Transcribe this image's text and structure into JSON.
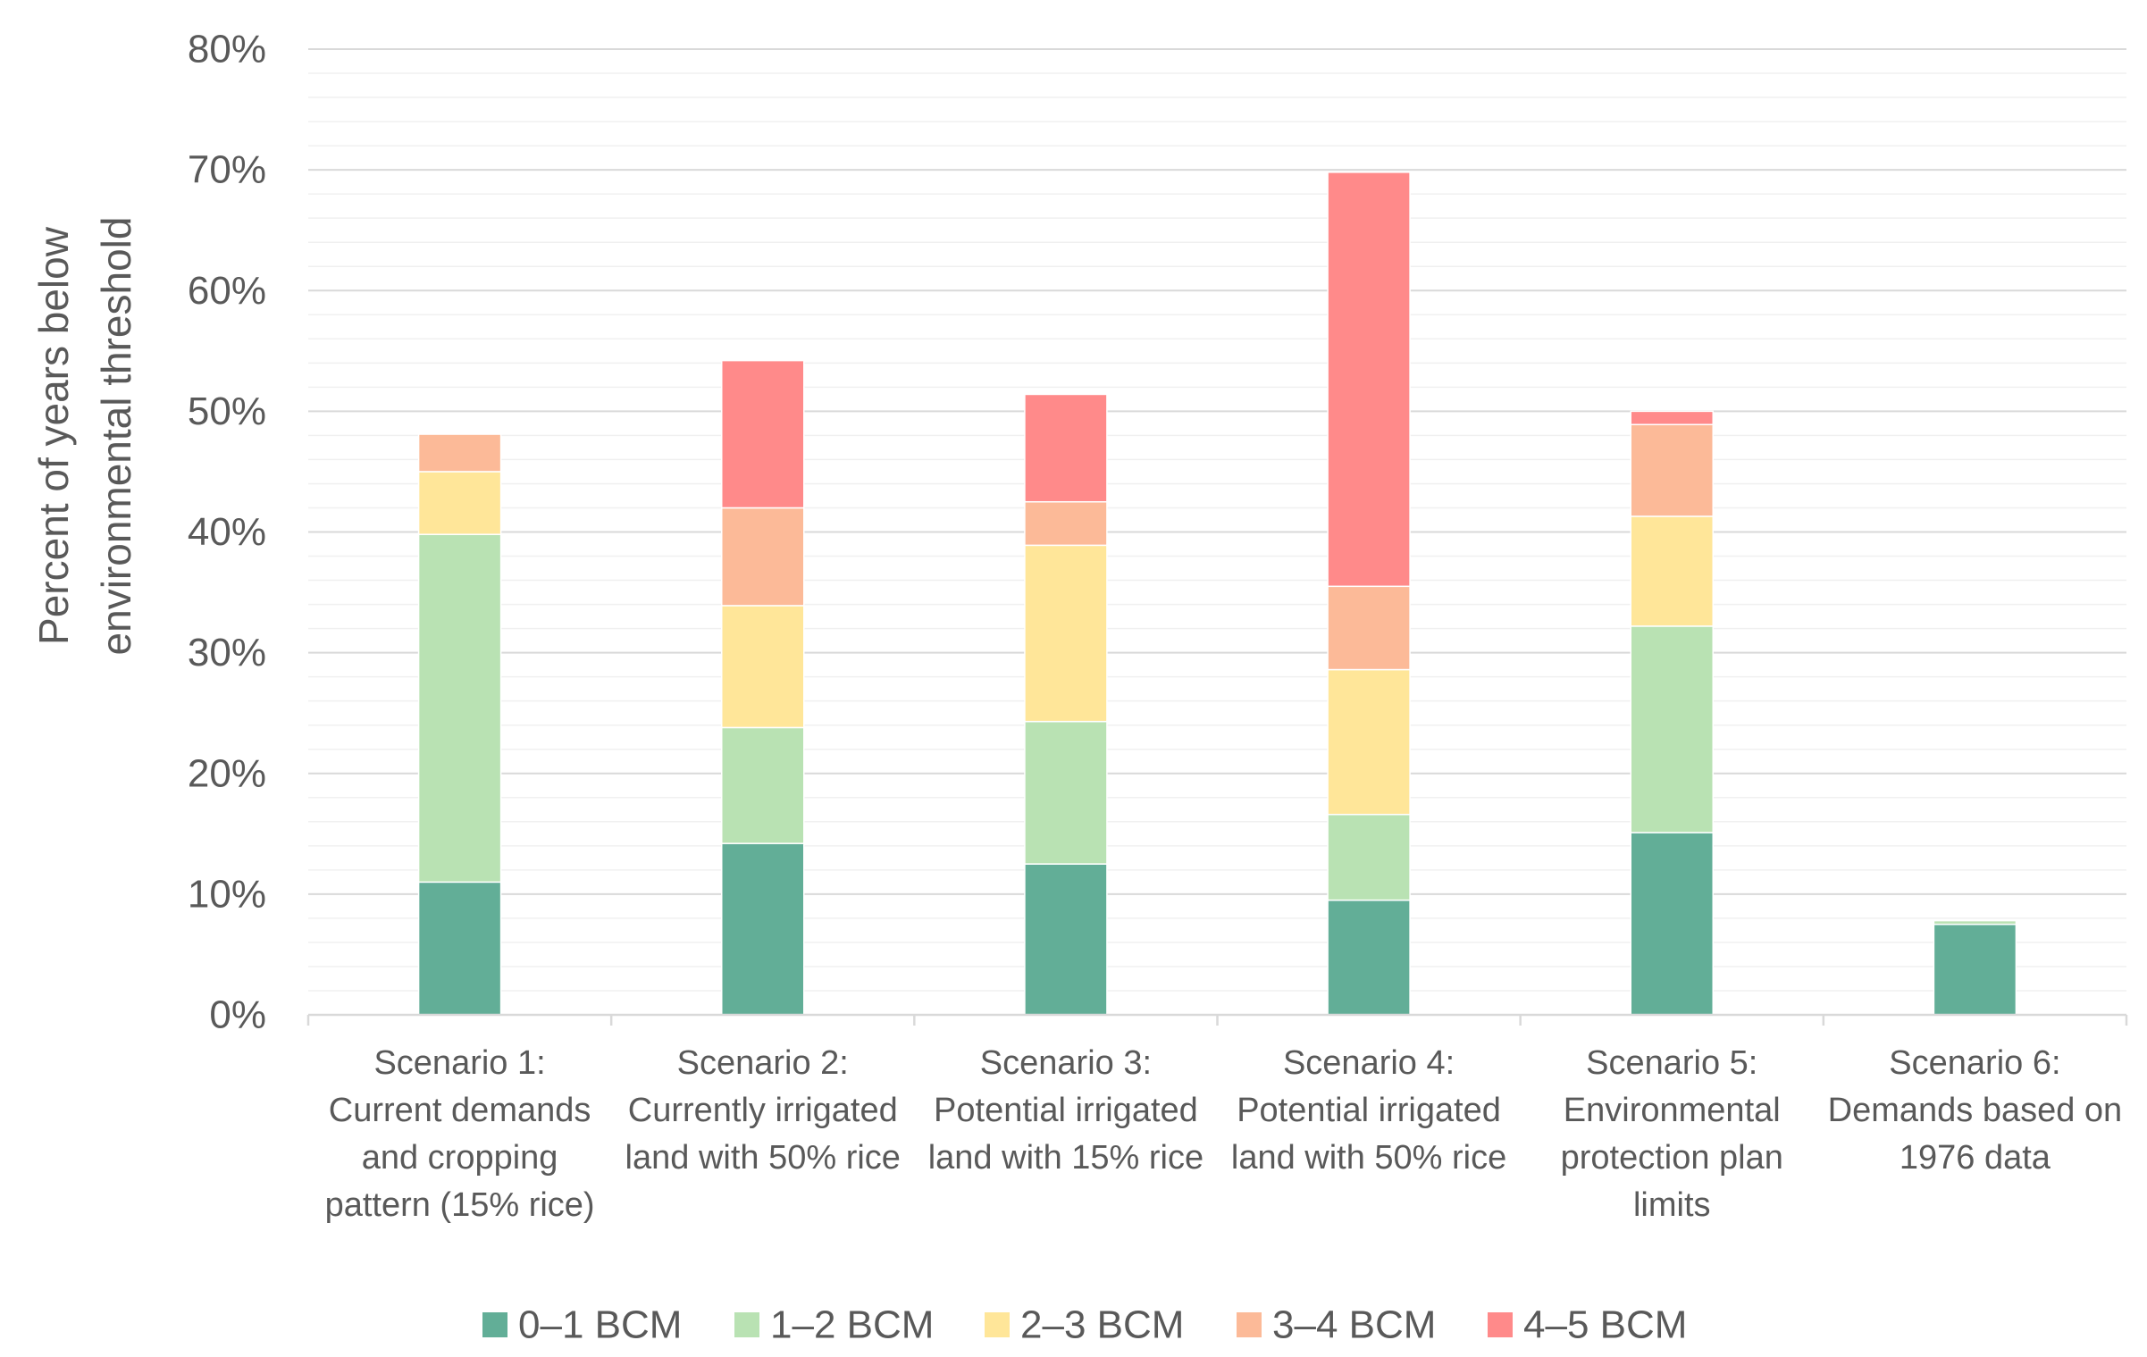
{
  "chart_data": {
    "type": "bar",
    "stacked": true,
    "title": "",
    "ylabel_lines": [
      "Percent of years below",
      "environmental  threshold"
    ],
    "xlabel": "",
    "ylim": [
      0,
      80
    ],
    "y_ticks": [
      0,
      10,
      20,
      30,
      40,
      50,
      60,
      70,
      80
    ],
    "y_tick_labels": [
      "0%",
      "10%",
      "20%",
      "30%",
      "40%",
      "50%",
      "60%",
      "70%",
      "80%"
    ],
    "minor_gridline_step": 2,
    "grid": true,
    "legend_position": "bottom",
    "categories": [
      [
        "Scenario 1:",
        "Current demands",
        "and cropping",
        "pattern (15% rice)"
      ],
      [
        "Scenario 2:",
        "Currently irrigated",
        "land with 50% rice"
      ],
      [
        "Scenario 3:",
        "Potential irrigated",
        "land with 15% rice"
      ],
      [
        "Scenario 4:",
        "Potential irrigated",
        "land with 50% rice"
      ],
      [
        "Scenario 5:",
        "Environmental",
        "protection plan",
        "limits"
      ],
      [
        "Scenario 6:",
        "Demands based on",
        "1976 data"
      ]
    ],
    "series": [
      {
        "name": "0–1 BCM",
        "color": "#62AE97",
        "values": [
          11,
          14.2,
          12.5,
          9.5,
          15.1,
          7.5
        ]
      },
      {
        "name": "1–2 BCM",
        "color": "#B9E2B3",
        "values": [
          28.8,
          9.6,
          11.8,
          7.1,
          17.1,
          0.3
        ]
      },
      {
        "name": "2–3 BCM",
        "color": "#FFE699",
        "values": [
          5.2,
          10.1,
          14.6,
          12,
          9.1,
          0
        ]
      },
      {
        "name": "3–4 BCM",
        "color": "#FCBA98",
        "values": [
          3.1,
          8.1,
          3.6,
          6.9,
          7.6,
          0
        ]
      },
      {
        "name": "4–5 BCM",
        "color": "#FF8A8A",
        "values": [
          0,
          12.2,
          8.9,
          34.3,
          1.1,
          0
        ]
      }
    ]
  }
}
